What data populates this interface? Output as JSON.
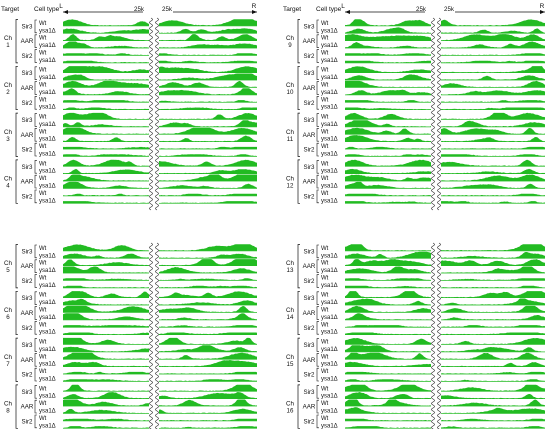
{
  "header": {
    "target_label": "Target",
    "celltype_label": "Cell type",
    "left_end": "L",
    "right_end": "R",
    "break_left": "25k",
    "break_right": "25k"
  },
  "targets": [
    "Sir3",
    "AAR",
    "Sir2"
  ],
  "cell_types": [
    "Wt",
    "ysa1Δ"
  ],
  "chromosome_prefix": "Ch",
  "colors": {
    "signal": "#22bb22",
    "signal_light": "#7fdc7f",
    "ink": "#111111"
  },
  "panels": [
    {
      "chromosomes": [
        "1",
        "2",
        "3",
        "4"
      ],
      "show_header": true
    },
    {
      "chromosomes": [
        "9",
        "10",
        "11",
        "12"
      ],
      "show_header": true
    },
    {
      "chromosomes": [
        "5",
        "6",
        "7",
        "8"
      ],
      "show_header": false
    },
    {
      "chromosomes": [
        "13",
        "14",
        "15",
        "16"
      ],
      "show_header": false
    }
  ]
}
